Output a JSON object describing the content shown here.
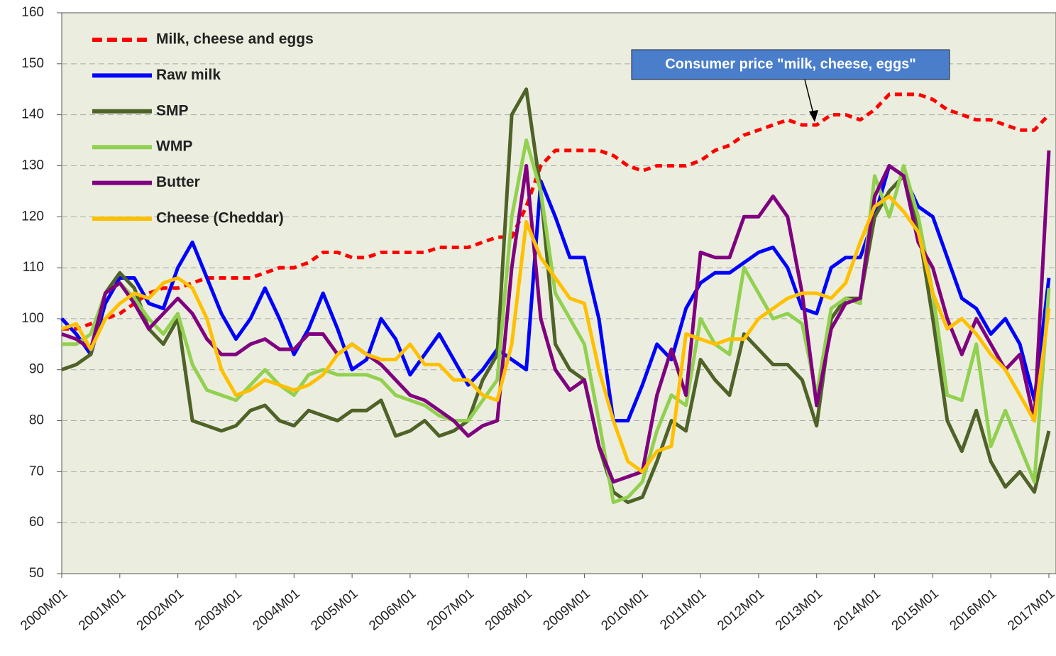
{
  "chart_data": {
    "type": "line",
    "categories": [
      "2000M01",
      null,
      null,
      null,
      "2001M01",
      null,
      null,
      null,
      "2002M01",
      null,
      null,
      null,
      "2003M01",
      null,
      null,
      null,
      "2004M01",
      null,
      null,
      null,
      "2005M01",
      null,
      null,
      null,
      "2006M01",
      null,
      null,
      null,
      "2007M01",
      null,
      null,
      null,
      "2008M01",
      null,
      null,
      null,
      "2009M01",
      null,
      null,
      null,
      "2010M01",
      null,
      null,
      null,
      "2011M01",
      null,
      null,
      null,
      "2012M01",
      null,
      null,
      null,
      "2013M01",
      null,
      null,
      null,
      "2014M01",
      null,
      null,
      null,
      "2015M01",
      null,
      null,
      null,
      "2016M01",
      null,
      null,
      null,
      "2017M01"
    ],
    "series": [
      {
        "name": "Milk, cheese and eggs",
        "color": "#ff0000",
        "dashed": true,
        "values": [
          98,
          98,
          99,
          100,
          101,
          103,
          105,
          106,
          106,
          107,
          108,
          108,
          108,
          108,
          109,
          110,
          110,
          111,
          113,
          113,
          112,
          112,
          113,
          113,
          113,
          113,
          114,
          114,
          114,
          115,
          116,
          116,
          122,
          130,
          133,
          133,
          133,
          133,
          132,
          130,
          129,
          130,
          130,
          130,
          131,
          133,
          134,
          136,
          137,
          138,
          139,
          138,
          138,
          140,
          140,
          139,
          141,
          144,
          144,
          144,
          143,
          141,
          140,
          139,
          139,
          138,
          137,
          137,
          140
        ]
      },
      {
        "name": "Raw milk",
        "color": "#0000ff",
        "values": [
          100,
          97,
          93,
          103,
          108,
          108,
          103,
          102,
          110,
          115,
          108,
          101,
          96,
          100,
          106,
          100,
          93,
          98,
          105,
          98,
          90,
          92,
          100,
          96,
          89,
          93,
          97,
          92,
          87,
          90,
          94,
          92,
          90,
          127,
          120,
          112,
          112,
          100,
          80,
          80,
          87,
          95,
          92,
          102,
          107,
          109,
          109,
          111,
          113,
          114,
          110,
          102,
          101,
          110,
          112,
          112,
          120,
          130,
          128,
          122,
          120,
          112,
          104,
          102,
          97,
          100,
          95,
          84,
          108
        ]
      },
      {
        "name": "SMP",
        "color": "#4f6228",
        "values": [
          90,
          91,
          93,
          105,
          109,
          106,
          98,
          95,
          100,
          80,
          79,
          78,
          79,
          82,
          83,
          80,
          79,
          82,
          81,
          80,
          82,
          82,
          84,
          77,
          78,
          80,
          77,
          78,
          80,
          88,
          93,
          140,
          145,
          125,
          95,
          90,
          88,
          75,
          66,
          64,
          65,
          72,
          80,
          78,
          92,
          88,
          85,
          97,
          94,
          91,
          91,
          88,
          79,
          100,
          104,
          104,
          120,
          125,
          128,
          118,
          100,
          80,
          74,
          82,
          72,
          67,
          70,
          66,
          78
        ]
      },
      {
        "name": "WMP",
        "color": "#92d050",
        "values": [
          95,
          95,
          97,
          105,
          107,
          104,
          100,
          97,
          101,
          91,
          86,
          85,
          84,
          87,
          90,
          87,
          85,
          89,
          90,
          89,
          89,
          89,
          88,
          85,
          84,
          83,
          81,
          80,
          80,
          84,
          88,
          120,
          135,
          125,
          105,
          100,
          95,
          80,
          64,
          65,
          68,
          78,
          85,
          83,
          100,
          95,
          93,
          110,
          105,
          100,
          101,
          99,
          85,
          102,
          104,
          103,
          128,
          120,
          130,
          120,
          105,
          85,
          84,
          95,
          75,
          82,
          75,
          68,
          106
        ]
      },
      {
        "name": "Butter",
        "color": "#800080",
        "values": [
          97,
          96,
          94,
          105,
          107,
          103,
          98,
          101,
          104,
          101,
          96,
          93,
          93,
          95,
          96,
          94,
          94,
          97,
          97,
          93,
          95,
          93,
          91,
          88,
          85,
          84,
          82,
          80,
          77,
          79,
          80,
          110,
          130,
          100,
          90,
          86,
          88,
          75,
          68,
          69,
          70,
          85,
          94,
          85,
          113,
          112,
          112,
          120,
          120,
          124,
          120,
          105,
          83,
          98,
          103,
          104,
          124,
          130,
          128,
          115,
          110,
          100,
          93,
          100,
          95,
          90,
          93,
          80,
          133
        ]
      },
      {
        "name": "Cheese (Cheddar)",
        "color": "#ffc000",
        "values": [
          98,
          99,
          94,
          100,
          103,
          105,
          104,
          107,
          108,
          106,
          100,
          90,
          85,
          86,
          88,
          87,
          86,
          87,
          89,
          93,
          95,
          93,
          92,
          92,
          95,
          91,
          91,
          88,
          88,
          85,
          84,
          95,
          119,
          112,
          108,
          104,
          103,
          90,
          80,
          72,
          70,
          74,
          75,
          97,
          96,
          95,
          96,
          96,
          100,
          102,
          104,
          105,
          105,
          104,
          107,
          115,
          122,
          124,
          121,
          117,
          105,
          98,
          100,
          97,
          93,
          90,
          85,
          80,
          102
        ]
      }
    ],
    "ylim": [
      50,
      160
    ],
    "yticks": [
      50,
      60,
      70,
      80,
      90,
      100,
      110,
      120,
      130,
      140,
      150,
      160
    ],
    "grid": true,
    "annotation": "Consumer price \"milk, cheese, eggs\""
  }
}
